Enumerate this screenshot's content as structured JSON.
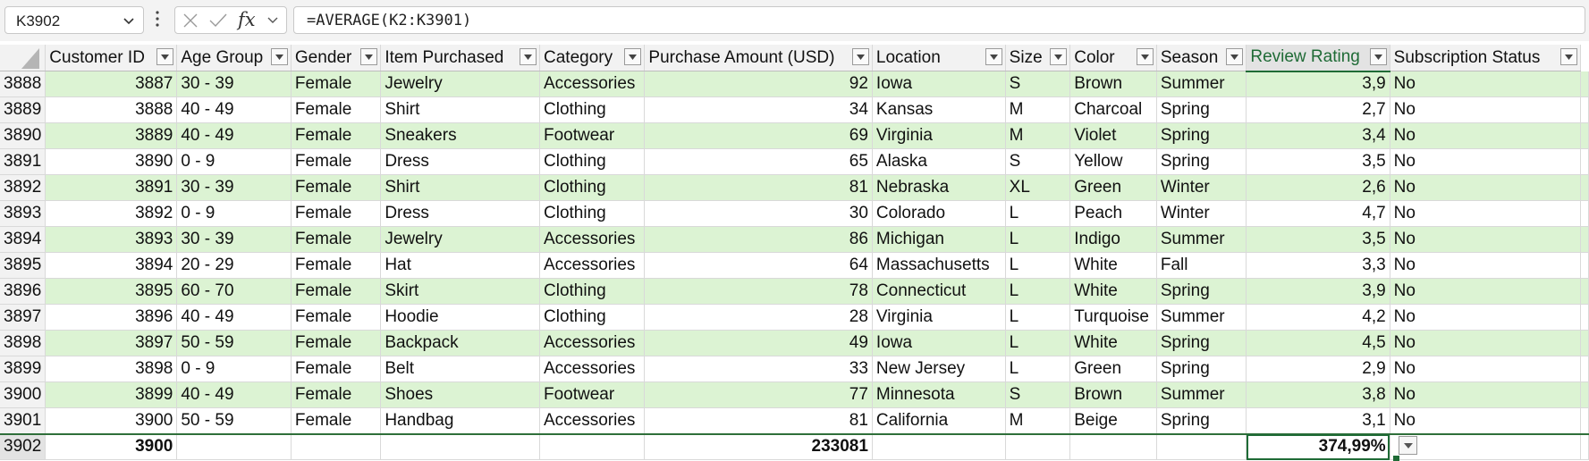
{
  "formula_bar": {
    "name_box": "K3902",
    "formula": "=AVERAGE(K2:K3901)",
    "cancel_icon": "close-icon",
    "enter_icon": "check-icon",
    "fx_label": "fx"
  },
  "columns": [
    "Customer ID",
    "Age Group",
    "Gender",
    "Item Purchased",
    "Category",
    "Purchase Amount (USD)",
    "Location",
    "Size",
    "Color",
    "Season",
    "Review Rating",
    "Subscription Status"
  ],
  "rows": [
    {
      "n": "3888",
      "cells": [
        "3887",
        "30 - 39",
        "Female",
        "Jewelry",
        "Accessories",
        "92",
        "Iowa",
        "S",
        "Brown",
        "Summer",
        "3,9",
        "No"
      ]
    },
    {
      "n": "3889",
      "cells": [
        "3888",
        "40 - 49",
        "Female",
        "Shirt",
        "Clothing",
        "34",
        "Kansas",
        "M",
        "Charcoal",
        "Spring",
        "2,7",
        "No"
      ]
    },
    {
      "n": "3890",
      "cells": [
        "3889",
        "40 - 49",
        "Female",
        "Sneakers",
        "Footwear",
        "69",
        "Virginia",
        "M",
        "Violet",
        "Spring",
        "3,4",
        "No"
      ]
    },
    {
      "n": "3891",
      "cells": [
        "3890",
        "0 - 9",
        "Female",
        "Dress",
        "Clothing",
        "65",
        "Alaska",
        "S",
        "Yellow",
        "Spring",
        "3,5",
        "No"
      ]
    },
    {
      "n": "3892",
      "cells": [
        "3891",
        "30 - 39",
        "Female",
        "Shirt",
        "Clothing",
        "81",
        "Nebraska",
        "XL",
        "Green",
        "Winter",
        "2,6",
        "No"
      ]
    },
    {
      "n": "3893",
      "cells": [
        "3892",
        "0 - 9",
        "Female",
        "Dress",
        "Clothing",
        "30",
        "Colorado",
        "L",
        "Peach",
        "Winter",
        "4,7",
        "No"
      ]
    },
    {
      "n": "3894",
      "cells": [
        "3893",
        "30 - 39",
        "Female",
        "Jewelry",
        "Accessories",
        "86",
        "Michigan",
        "L",
        "Indigo",
        "Summer",
        "3,5",
        "No"
      ]
    },
    {
      "n": "3895",
      "cells": [
        "3894",
        "20 - 29",
        "Female",
        "Hat",
        "Accessories",
        "64",
        "Massachusetts",
        "L",
        "White",
        "Fall",
        "3,3",
        "No"
      ]
    },
    {
      "n": "3896",
      "cells": [
        "3895",
        "60 - 70",
        "Female",
        "Skirt",
        "Clothing",
        "78",
        "Connecticut",
        "L",
        "White",
        "Spring",
        "3,9",
        "No"
      ]
    },
    {
      "n": "3897",
      "cells": [
        "3896",
        "40 - 49",
        "Female",
        "Hoodie",
        "Clothing",
        "28",
        "Virginia",
        "L",
        "Turquoise",
        "Summer",
        "4,2",
        "No"
      ]
    },
    {
      "n": "3898",
      "cells": [
        "3897",
        "50 - 59",
        "Female",
        "Backpack",
        "Accessories",
        "49",
        "Iowa",
        "L",
        "White",
        "Spring",
        "4,5",
        "No"
      ]
    },
    {
      "n": "3899",
      "cells": [
        "3898",
        "0 - 9",
        "Female",
        "Belt",
        "Accessories",
        "33",
        "New Jersey",
        "L",
        "Green",
        "Spring",
        "2,9",
        "No"
      ]
    },
    {
      "n": "3900",
      "cells": [
        "3899",
        "40 - 49",
        "Female",
        "Shoes",
        "Footwear",
        "77",
        "Minnesota",
        "S",
        "Brown",
        "Summer",
        "3,8",
        "No"
      ]
    },
    {
      "n": "3901",
      "cells": [
        "3900",
        "50 - 59",
        "Female",
        "Handbag",
        "Accessories",
        "81",
        "California",
        "M",
        "Beige",
        "Spring",
        "3,1",
        "No"
      ]
    }
  ],
  "total_row": {
    "n": "3902",
    "cells": [
      "3900",
      "",
      "",
      "",
      "",
      "233081",
      "",
      "",
      "",
      "",
      "374,99%",
      ""
    ]
  },
  "colors": {
    "band": "#dcf3d3",
    "accent": "#1f6b36"
  }
}
